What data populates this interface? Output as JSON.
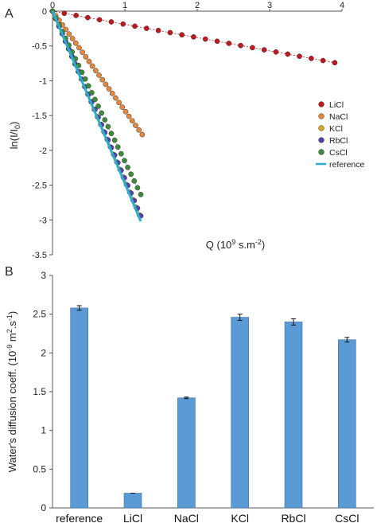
{
  "panels": {
    "a_label": "A",
    "b_label": "B"
  },
  "colors": {
    "LiCl": "#c0181e",
    "NaCl": "#e8863c",
    "KCl": "#d7a421",
    "RbCl": "#5a3fa8",
    "CsCl": "#3d8a3a",
    "reference": "#27aed0",
    "bar": "#5b9bd5",
    "bar_edge": "#3b6fa8",
    "fit_line": "#8a8a8a"
  },
  "chart_data": [
    {
      "type": "scatter",
      "panel": "A",
      "xlabel": "Q (10⁹ s.m⁻²)",
      "ylabel": "ln(I/I₀)",
      "xlim": [
        0,
        4
      ],
      "ylim": [
        -3.5,
        0
      ],
      "xticks": [
        "0",
        "1",
        "2",
        "3",
        "4"
      ],
      "yticks": [
        "0",
        "-0.5",
        "-1",
        "-1.5",
        "-2",
        "-2.5",
        "-3",
        "-3.5"
      ],
      "grid": false,
      "legend_position": "right",
      "series": [
        {
          "name": "LiCl",
          "slope": -0.19,
          "x_max": 3.9,
          "n": 25
        },
        {
          "name": "NaCl",
          "slope": -1.43,
          "x_max": 1.24,
          "n": 28
        },
        {
          "name": "KCl",
          "slope": -2.44,
          "x_max": 1.2,
          "n": 28
        },
        {
          "name": "RbCl",
          "slope": -2.41,
          "x_max": 1.22,
          "n": 28
        },
        {
          "name": "CsCl",
          "slope": -2.16,
          "x_max": 1.22,
          "n": 28
        },
        {
          "name": "reference",
          "type": "line",
          "x": [
            0,
            1.22
          ],
          "y": [
            0,
            -3.02
          ]
        }
      ]
    },
    {
      "type": "bar",
      "panel": "B",
      "ylabel": "Water's diffusion coeff. (10⁻⁹ m².s⁻¹)",
      "ylim": [
        0,
        3
      ],
      "yticks": [
        "0",
        "0.5",
        "1",
        "1.5",
        "2",
        "2.5",
        "3"
      ],
      "categories": [
        "reference",
        "LiCl",
        "NaCl",
        "KCl",
        "RbCl",
        "CsCl"
      ],
      "values": [
        2.58,
        0.19,
        1.42,
        2.46,
        2.4,
        2.17
      ],
      "errors": [
        0.03,
        0.0,
        0.01,
        0.04,
        0.04,
        0.03
      ]
    }
  ]
}
